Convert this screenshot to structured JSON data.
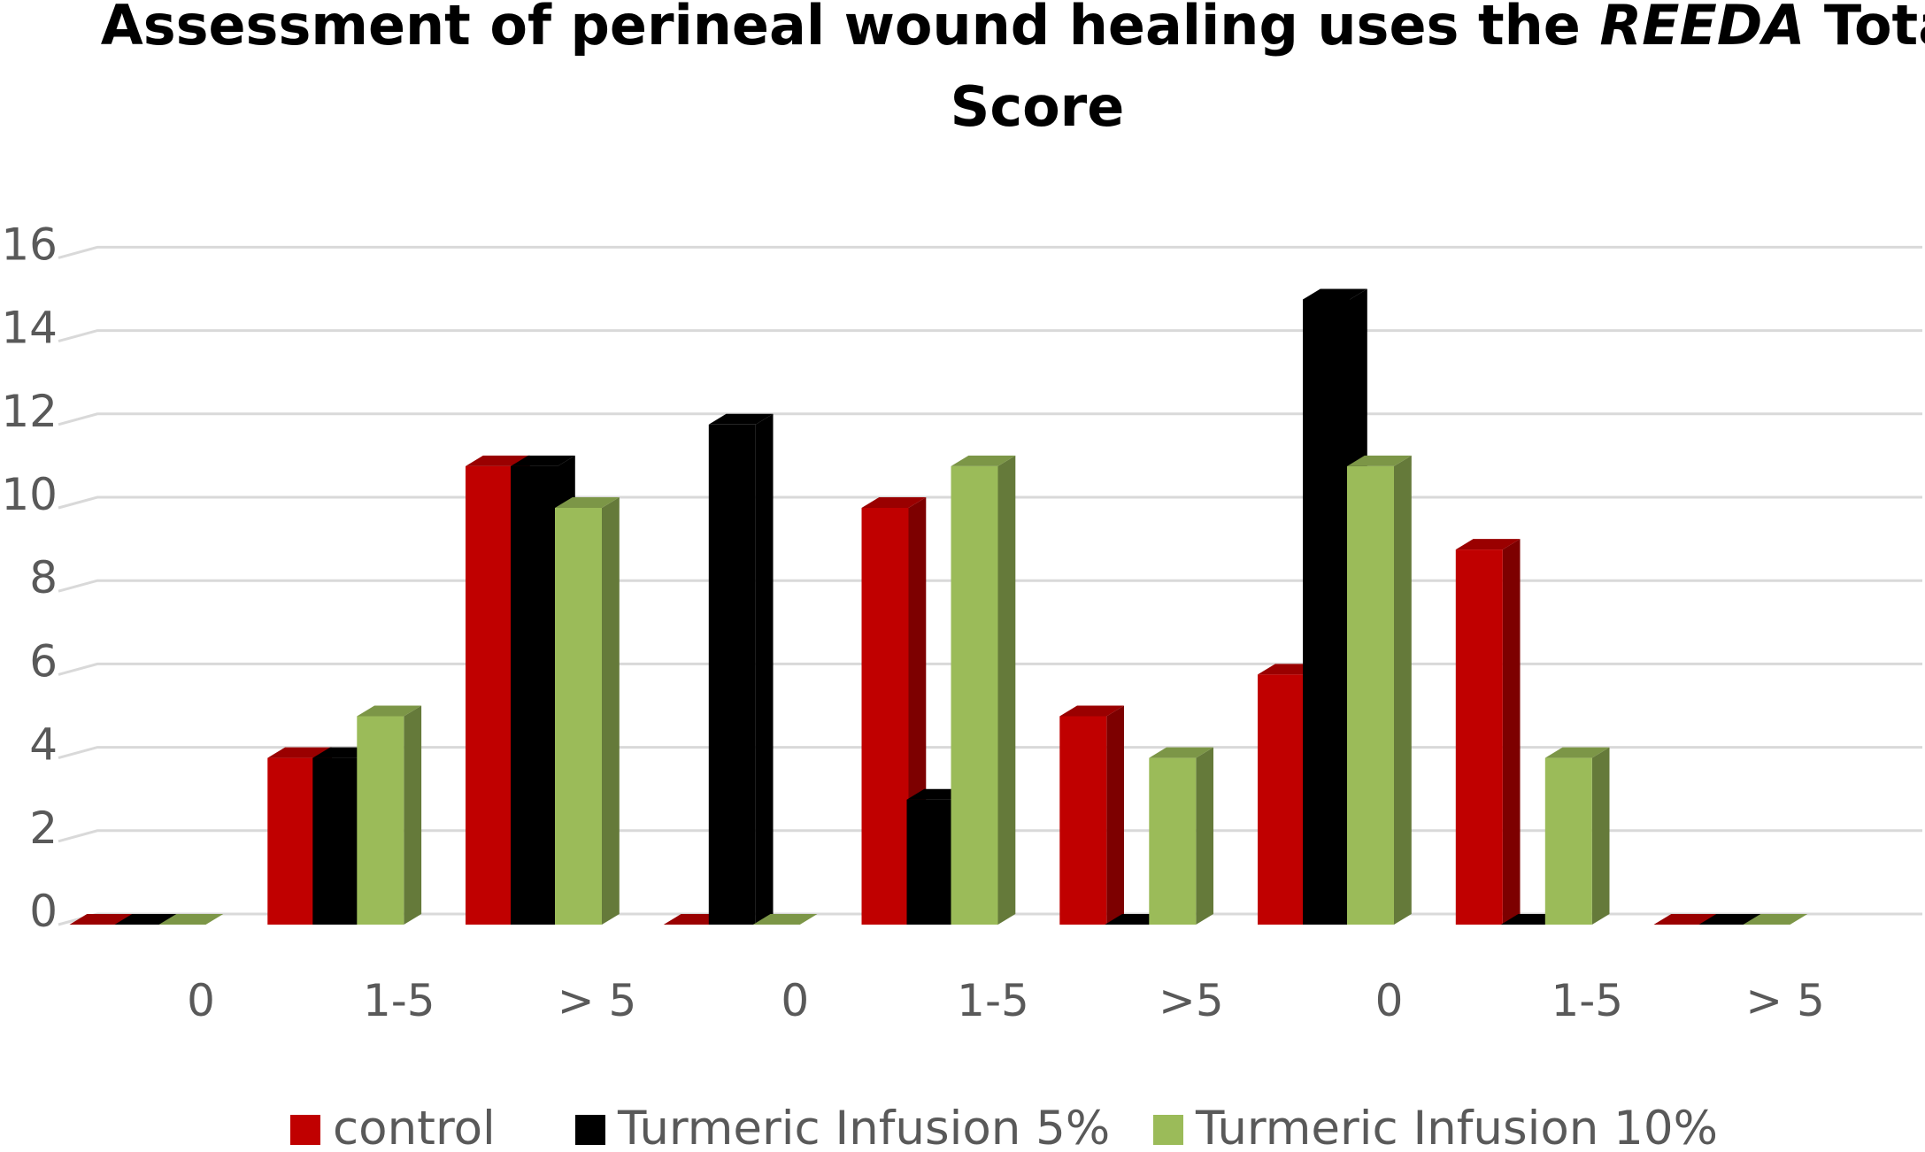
{
  "chart_data": {
    "type": "bar",
    "title_parts": [
      "Assessment of perineal wound healing uses the ",
      "REEDA",
      " Total"
    ],
    "title_line2": "Score",
    "categories": [
      "0",
      "1-5",
      "> 5",
      "0",
      "1-5",
      ">5",
      "0",
      "1-5",
      "> 5"
    ],
    "series": [
      {
        "name": "control",
        "color": "#C00000",
        "values": [
          0,
          4,
          11,
          0,
          10,
          5,
          6,
          9,
          0
        ]
      },
      {
        "name": "Turmeric Infusion 5%",
        "color": "#000000",
        "values": [
          0,
          4,
          11,
          12,
          3,
          0,
          15,
          0,
          0
        ]
      },
      {
        "name": "Turmeric Infusion 10%",
        "color": "#9BBB59",
        "values": [
          0,
          5,
          10,
          0,
          11,
          4,
          11,
          4,
          0
        ]
      }
    ],
    "yticks": [
      "0",
      "2",
      "4",
      "6",
      "8",
      "10",
      "12",
      "14",
      "16"
    ],
    "ylim": [
      0,
      16
    ],
    "grid": true,
    "legend_position": "bottom",
    "style": "3d-clustered-column"
  }
}
